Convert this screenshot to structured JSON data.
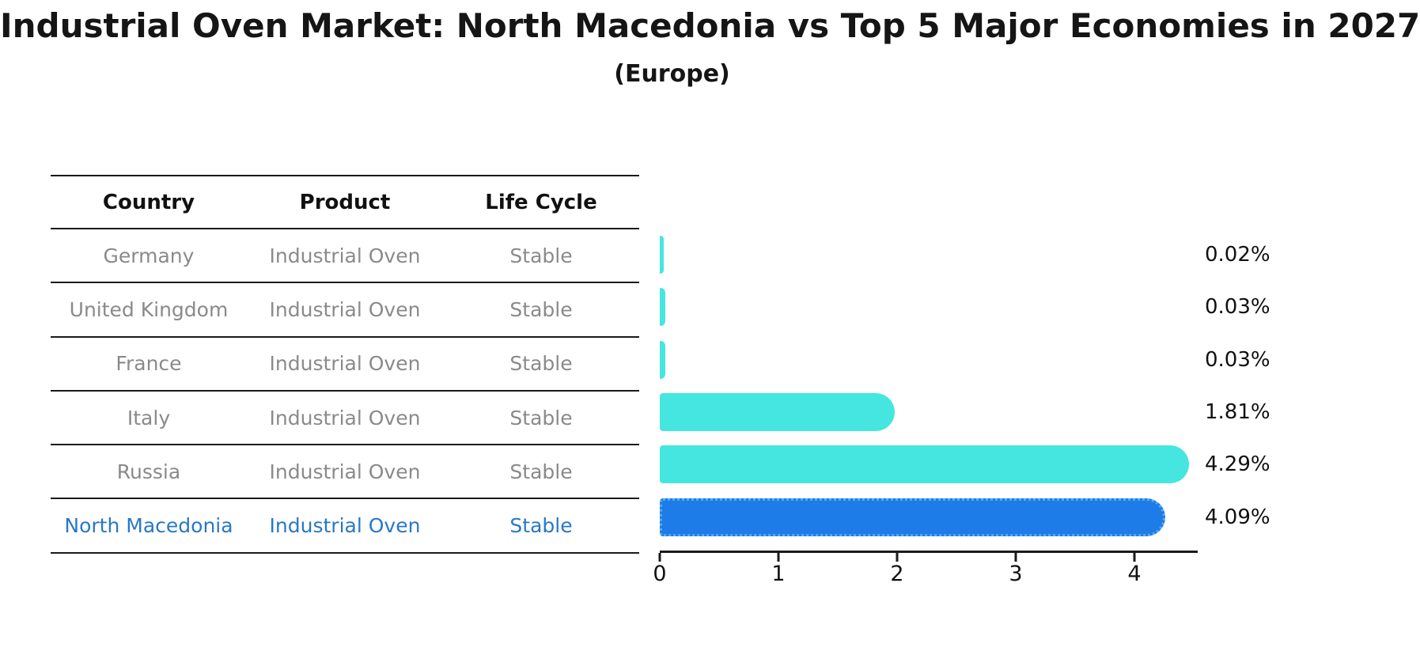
{
  "title": "Industrial Oven Market: North Macedonia vs Top 5 Major Economies in 2027",
  "subtitle": "(Europe)",
  "table": {
    "headers": {
      "country": "Country",
      "product": "Product",
      "life_cycle": "Life Cycle"
    },
    "rows": [
      {
        "country": "Germany",
        "product": "Industrial Oven",
        "life_cycle": "Stable",
        "highlight": false
      },
      {
        "country": "United Kingdom",
        "product": "Industrial Oven",
        "life_cycle": "Stable",
        "highlight": false
      },
      {
        "country": "France",
        "product": "Industrial Oven",
        "life_cycle": "Stable",
        "highlight": false
      },
      {
        "country": "Italy",
        "product": "Industrial Oven",
        "life_cycle": "Stable",
        "highlight": false
      },
      {
        "country": "Russia",
        "product": "Industrial Oven",
        "life_cycle": "Stable",
        "highlight": false
      },
      {
        "country": "North Macedonia",
        "product": "Industrial Oven",
        "life_cycle": "Stable",
        "highlight": true
      }
    ]
  },
  "chart_data": {
    "type": "bar",
    "orientation": "horizontal",
    "title": "Industrial Oven Market: North Macedonia vs Top 5 Major Economies in 2027",
    "subtitle": "(Europe)",
    "categories": [
      "Germany",
      "United Kingdom",
      "France",
      "Italy",
      "Russia",
      "North Macedonia"
    ],
    "values": [
      0.02,
      0.03,
      0.03,
      1.81,
      4.29,
      4.09
    ],
    "value_labels": [
      "0.02%",
      "0.03%",
      "0.03%",
      "1.81%",
      "4.29%",
      "4.09%"
    ],
    "xlabel": "",
    "ylabel": "",
    "xlim": [
      0,
      4.5
    ],
    "x_ticks": [
      0,
      1,
      2,
      3,
      4
    ],
    "grid": false,
    "legend": false,
    "highlight_index": 5,
    "highlight_edge_style": "dotted",
    "bar_colors": [
      "#45e6e0",
      "#45e6e0",
      "#45e6e0",
      "#45e6e0",
      "#45e6e0",
      "#1e7ce8"
    ]
  },
  "colors": {
    "bar_cyan": "#45e6e0",
    "bar_blue": "#1e7ce8",
    "highlight_text": "#2878c8",
    "row_text": "#8a8a8a",
    "header_text": "#111111",
    "axis": "#1a1a1a"
  }
}
